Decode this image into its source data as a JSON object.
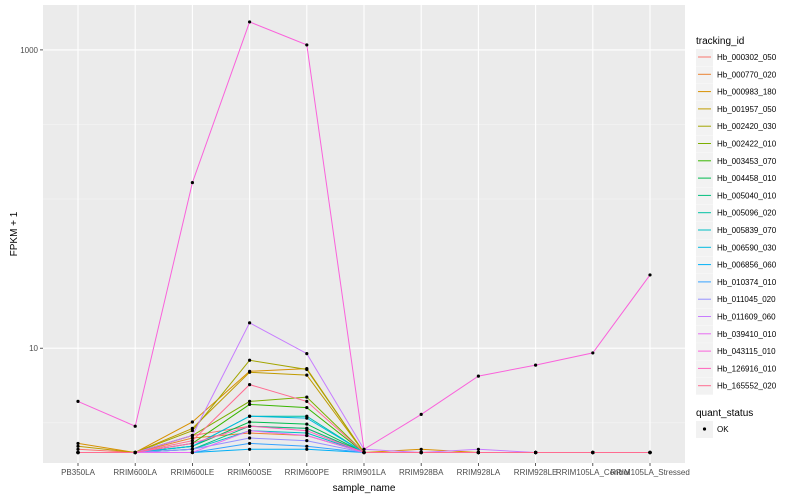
{
  "chart_data": {
    "type": "line",
    "xlabel": "sample_name",
    "ylabel": "FPKM + 1",
    "y_scale": "log10",
    "ylim": [
      1.7,
      2000
    ],
    "y_ticks": [
      {
        "value": 10,
        "label": "10"
      },
      {
        "value": 1000,
        "label": "1000"
      }
    ],
    "categories": [
      "PB350LA",
      "RRIM600LA",
      "RRIM600LE",
      "RRIM600SE",
      "RRIM600PE",
      "RRIM901LA",
      "RRIM928BA",
      "RRIM928LA",
      "RRIM928LE",
      "RRIM105LA_Control",
      "RRIM105LA_Stressed"
    ],
    "grid": true,
    "background": "#ebebeb",
    "legend": {
      "title": "tracking_id",
      "placement": "right"
    },
    "series": [
      {
        "name": "Hb_000302_050",
        "color": "#F8766D",
        "values": [
          2.1,
          2.0,
          2.6,
          3.0,
          2.9,
          2.0,
          2.0,
          2.0,
          2.0,
          2.0,
          2.0
        ]
      },
      {
        "name": "Hb_000770_020",
        "color": "#EA8331",
        "values": [
          2.0,
          2.0,
          2.5,
          2.7,
          2.6,
          2.0,
          2.0,
          2.0,
          2.0,
          2.0,
          2.0
        ]
      },
      {
        "name": "Hb_000983_180",
        "color": "#D89000",
        "values": [
          2.3,
          2.0,
          3.2,
          7.0,
          7.3,
          2.0,
          2.1,
          2.0,
          2.0,
          2.0,
          2.0
        ]
      },
      {
        "name": "Hb_001957_050",
        "color": "#C09B00",
        "values": [
          2.2,
          2.0,
          2.9,
          6.9,
          6.6,
          2.0,
          2.0,
          2.0,
          2.0,
          2.0,
          2.0
        ]
      },
      {
        "name": "Hb_002420_030",
        "color": "#A3A500",
        "values": [
          2.0,
          2.0,
          2.8,
          8.3,
          7.2,
          2.0,
          2.0,
          2.0,
          2.0,
          2.0,
          2.0
        ]
      },
      {
        "name": "Hb_002422_010",
        "color": "#7CAE00",
        "values": [
          2.0,
          2.0,
          2.6,
          4.4,
          4.7,
          2.0,
          2.0,
          2.0,
          2.0,
          2.0,
          2.0
        ]
      },
      {
        "name": "Hb_003453_070",
        "color": "#39B600",
        "values": [
          2.0,
          2.0,
          2.3,
          4.2,
          4.0,
          2.0,
          2.0,
          2.0,
          2.0,
          2.0,
          2.0
        ]
      },
      {
        "name": "Hb_004458_010",
        "color": "#00BB4E",
        "values": [
          2.0,
          2.0,
          2.2,
          3.2,
          3.1,
          2.0,
          2.0,
          2.0,
          2.0,
          2.0,
          2.0
        ]
      },
      {
        "name": "Hb_005040_010",
        "color": "#00BF7D",
        "values": [
          2.0,
          2.0,
          2.1,
          3.0,
          2.9,
          2.0,
          2.0,
          2.0,
          2.0,
          2.0,
          2.0
        ]
      },
      {
        "name": "Hb_005096_020",
        "color": "#00C1A3",
        "values": [
          2.0,
          2.0,
          2.2,
          3.5,
          3.5,
          2.0,
          2.0,
          2.0,
          2.0,
          2.0,
          2.0
        ]
      },
      {
        "name": "Hb_005839_070",
        "color": "#00BFC4",
        "values": [
          2.0,
          2.0,
          2.1,
          2.8,
          2.7,
          2.0,
          2.0,
          2.0,
          2.0,
          2.0,
          2.0
        ]
      },
      {
        "name": "Hb_006590_030",
        "color": "#00BAE0",
        "values": [
          2.0,
          2.0,
          2.2,
          3.5,
          3.4,
          2.0,
          2.0,
          2.0,
          2.0,
          2.0,
          2.0
        ]
      },
      {
        "name": "Hb_006856_060",
        "color": "#00B0F6",
        "values": [
          2.0,
          2.0,
          2.0,
          2.1,
          2.1,
          2.0,
          2.0,
          2.0,
          2.0,
          2.0,
          2.0
        ]
      },
      {
        "name": "Hb_010374_010",
        "color": "#35A2FF",
        "values": [
          2.0,
          2.0,
          2.0,
          2.3,
          2.2,
          2.0,
          2.0,
          2.0,
          2.0,
          2.0,
          2.0
        ]
      },
      {
        "name": "Hb_011045_020",
        "color": "#9590FF",
        "values": [
          2.0,
          2.0,
          2.1,
          2.5,
          2.4,
          2.0,
          2.0,
          2.0,
          2.0,
          2.0,
          2.0
        ]
      },
      {
        "name": "Hb_011609_060",
        "color": "#C77CFF",
        "values": [
          2.0,
          2.0,
          2.6,
          14.8,
          9.2,
          2.1,
          2.0,
          2.1,
          2.0,
          2.0,
          2.0
        ]
      },
      {
        "name": "Hb_039410_010",
        "color": "#E76BF3",
        "values": [
          2.0,
          2.0,
          2.0,
          2.8,
          2.6,
          2.0,
          2.0,
          2.0,
          2.0,
          2.0,
          2.0
        ]
      },
      {
        "name": "Hb_043115_010",
        "color": "#FA62DB",
        "values": [
          4.4,
          3.0,
          129,
          1540,
          1080,
          2.1,
          3.6,
          6.5,
          7.7,
          9.3,
          31
        ]
      },
      {
        "name": "Hb_126916_010",
        "color": "#FF62BC",
        "values": [
          2.0,
          2.0,
          2.3,
          3.0,
          2.8,
          2.0,
          2.0,
          2.0,
          2.0,
          2.0,
          2.0
        ]
      },
      {
        "name": "Hb_165552_020",
        "color": "#FF6C91",
        "values": [
          2.0,
          2.0,
          2.4,
          5.7,
          4.4,
          2.0,
          2.0,
          2.0,
          2.0,
          2.0,
          2.0
        ]
      }
    ],
    "quant_status_legend": {
      "title": "quant_status",
      "items": [
        {
          "label": "OK",
          "shape": "point"
        }
      ]
    }
  }
}
